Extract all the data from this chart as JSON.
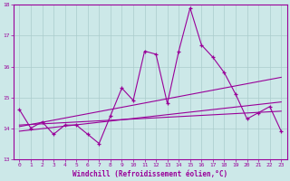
{
  "xlabel": "Windchill (Refroidissement éolien,°C)",
  "ylabel": "",
  "xlim": [
    -0.5,
    23.5
  ],
  "ylim": [
    13,
    18
  ],
  "yticks": [
    13,
    14,
    15,
    16,
    17,
    18
  ],
  "xticks": [
    0,
    1,
    2,
    3,
    4,
    5,
    6,
    7,
    8,
    9,
    10,
    11,
    12,
    13,
    14,
    15,
    16,
    17,
    18,
    19,
    20,
    21,
    22,
    23
  ],
  "bg_color": "#cce8e8",
  "line_color": "#990099",
  "grid_color": "#aacccc",
  "data_x": [
    0,
    1,
    2,
    3,
    4,
    5,
    6,
    7,
    8,
    9,
    10,
    11,
    12,
    13,
    14,
    15,
    16,
    17,
    18,
    19,
    20,
    21,
    22,
    23
  ],
  "data_y": [
    14.6,
    14.0,
    14.2,
    13.8,
    14.1,
    14.1,
    13.8,
    13.5,
    14.4,
    15.3,
    14.9,
    16.5,
    16.4,
    14.8,
    16.5,
    17.9,
    16.7,
    16.3,
    15.8,
    15.1,
    14.3,
    14.5,
    14.7,
    13.9
  ],
  "trend1_x": [
    0,
    23
  ],
  "trend1_y": [
    14.05,
    15.65
  ],
  "trend2_x": [
    0,
    23
  ],
  "trend2_y": [
    13.9,
    14.85
  ],
  "trend3_x": [
    0,
    23
  ],
  "trend3_y": [
    14.1,
    14.55
  ]
}
